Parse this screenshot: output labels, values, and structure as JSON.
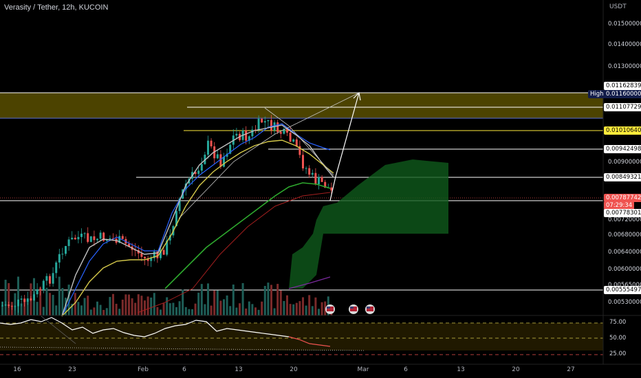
{
  "header": {
    "title": "Verasity / Tether, 12h, KUCOIN",
    "currency": "USDT"
  },
  "price_axis": {
    "ticks": [
      "0.01500000",
      "0.01400000",
      "0.01300000",
      "0.00900000",
      "0.00720000",
      "0.00680000",
      "0.00640000",
      "0.00600000",
      "0.00565000",
      "0.00530000"
    ],
    "high_label": "High",
    "tags": {
      "t1162839": "0.01162839",
      "high": "0.01160000",
      "t1107729": "0.01107729",
      "t1010640": "0.01010640",
      "t942498": "0.00942498",
      "t849321": "0.00849321",
      "current": "0.00787742",
      "countdown": "07:29:34",
      "t778301": "0.00778301",
      "t555497": "0.00555497"
    }
  },
  "rsi_axis": {
    "ticks": [
      "75.00",
      "50.00",
      "25.00"
    ]
  },
  "time_axis": {
    "ticks": [
      "16",
      "23",
      "Feb",
      "6",
      "13",
      "20",
      "Mar",
      "6",
      "13",
      "20",
      "27"
    ]
  },
  "colors": {
    "up": "#26a69a",
    "down": "#ef5350",
    "zone": "#ffeb3b",
    "cloud": "#0f5a1c",
    "ema_fast": "#2962ff",
    "ema_white": "#c0c0c0",
    "ema_yellow": "#d4c84a",
    "ema_green": "#2eaa2e"
  },
  "icons": [
    "event-flag-icon-us",
    "event-flag-icon-us",
    "event-flag-icon-us"
  ]
}
